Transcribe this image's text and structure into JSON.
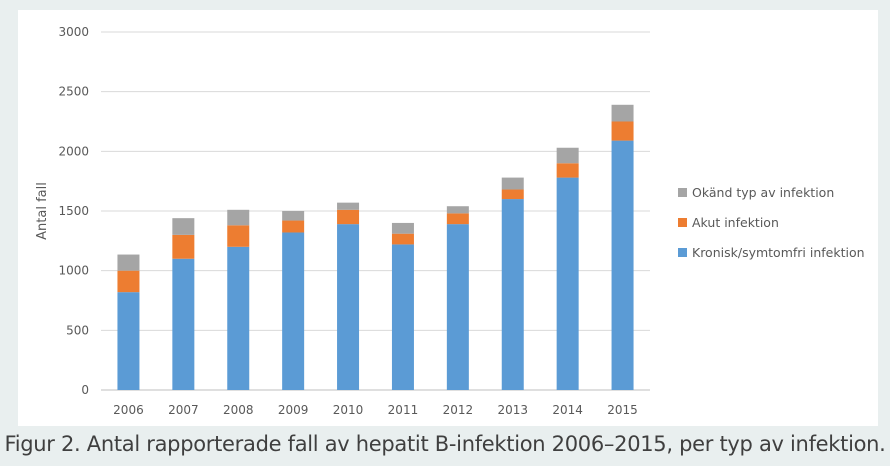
{
  "caption": "Figur 2. Antal rapporterade fall av hepatit B-infektion 2006–2015, per typ av infektion.",
  "chart_data": {
    "type": "bar",
    "stacked": true,
    "categories": [
      "2006",
      "2007",
      "2008",
      "2009",
      "2010",
      "2011",
      "2012",
      "2013",
      "2014",
      "2015"
    ],
    "series": [
      {
        "name": "Kronisk/symtomfri infektion",
        "color": "#5b9bd5",
        "values": [
          820,
          1100,
          1200,
          1320,
          1390,
          1220,
          1390,
          1600,
          1780,
          2090
        ]
      },
      {
        "name": "Akut infektion",
        "color": "#ed7d31",
        "values": [
          180,
          200,
          180,
          100,
          120,
          90,
          90,
          80,
          120,
          160
        ]
      },
      {
        "name": "Okänd typ av infektion",
        "color": "#a5a5a5",
        "values": [
          135,
          140,
          130,
          80,
          60,
          90,
          60,
          100,
          130,
          140
        ]
      }
    ],
    "legend_order": [
      "Okänd typ av infektion",
      "Akut infektion",
      "Kronisk/symtomfri infektion"
    ],
    "legend_position": "right",
    "ylabel": "Antal fall",
    "xlabel": "",
    "ylim": [
      0,
      3000
    ],
    "yticks": [
      "0",
      "500",
      "1000",
      "1500",
      "2000",
      "2500",
      "3000"
    ],
    "grid": true
  }
}
